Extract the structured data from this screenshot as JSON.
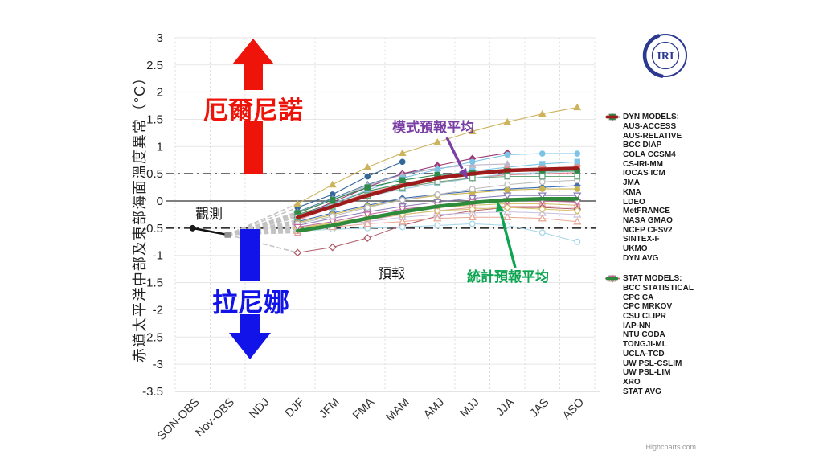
{
  "logo": {
    "text": "IRI"
  },
  "footer": {
    "credit": "Highcharts.com"
  },
  "legend": {
    "dyn_header": "DYN MODELS:",
    "stat_header": "STAT MODELS:"
  },
  "annotations": {
    "y_axis_label_note": "vertical axis title",
    "elnino": {
      "text": "厄爾尼諾",
      "color": "#ee1409"
    },
    "lanina": {
      "text": "拉尼娜",
      "color": "#1113e8"
    },
    "observed": {
      "text": "觀測",
      "color": "#111111"
    },
    "forecast": {
      "text": "預報",
      "color": "#111111"
    },
    "model_avg": {
      "text": "模式預報平均",
      "color": "#7a3fa5"
    },
    "stat_avg": {
      "text": "統計預報平均",
      "color": "#0da551"
    }
  },
  "chart_data": {
    "type": "line",
    "title": "",
    "ylabel": "赤道太平洋中部及東部海面溫度異常（°C）",
    "xlabel": "",
    "ylim": [
      -3.5,
      3
    ],
    "ytick_step": 0.5,
    "grid": true,
    "legend_position": "right",
    "categories": [
      "SON-OBS",
      "Nov-OBS",
      "NDJ",
      "DJF",
      "JFM",
      "FMA",
      "MAM",
      "AMJ",
      "MJJ",
      "JJA",
      "JAS",
      "ASO"
    ],
    "reference_lines": [
      {
        "value": 0.5,
        "style": "dashdot"
      },
      {
        "value": 0,
        "style": "solid"
      },
      {
        "value": -0.5,
        "style": "dashdot"
      }
    ],
    "observed": {
      "name": "觀測",
      "line_color": "#111111",
      "points": [
        {
          "category": "SON-OBS",
          "value": -0.5,
          "marker": "circle",
          "marker_color": "#1a1a1a"
        },
        {
          "category": "Nov-OBS",
          "value": -0.62,
          "marker": "square",
          "marker_color": "#909090"
        }
      ]
    },
    "connector_color": "#c3c3c3",
    "series": [
      {
        "name": "AUS-ACCESS",
        "group": "dyn",
        "color": "#34679a",
        "marker": "circle",
        "filled": true,
        "line_width": 1.1,
        "values": [
          null,
          null,
          null,
          -0.12,
          0.12,
          0.45,
          0.72,
          null,
          null,
          null,
          null,
          null
        ]
      },
      {
        "name": "AUS-RELATIVE",
        "group": "dyn",
        "color": "#5584ad",
        "marker": "triangle-up",
        "filled": true,
        "line_width": 1.1,
        "values": [
          null,
          null,
          null,
          -0.2,
          0.05,
          0.3,
          0.5,
          0.6,
          null,
          null,
          null,
          null
        ]
      },
      {
        "name": "BCC DIAP",
        "group": "dyn",
        "color": "#7fc6e8",
        "marker": "square",
        "filled": true,
        "line_width": 1.1,
        "values": [
          null,
          null,
          null,
          -0.3,
          -0.1,
          0.12,
          0.3,
          0.45,
          0.55,
          0.62,
          0.68,
          0.72
        ]
      },
      {
        "name": "COLA CCSM4",
        "group": "dyn",
        "color": "#ccb35c",
        "marker": "triangle-up",
        "filled": true,
        "line_width": 1.1,
        "values": [
          null,
          null,
          null,
          -0.05,
          0.3,
          0.62,
          0.88,
          1.08,
          1.28,
          1.45,
          1.6,
          1.72
        ]
      },
      {
        "name": "CS-IRI-MM",
        "group": "dyn",
        "color": "#e2848e",
        "marker": "triangle-down",
        "filled": true,
        "line_width": 1.1,
        "values": [
          null,
          null,
          null,
          -0.35,
          -0.12,
          0.08,
          0.25,
          0.35,
          0.42,
          0.48,
          0.5,
          0.52
        ]
      },
      {
        "name": "IOCAS ICM",
        "group": "dyn",
        "color": "#3f6db5",
        "marker": "diamond",
        "filled": true,
        "line_width": 1.1,
        "values": [
          null,
          null,
          null,
          -0.38,
          -0.22,
          -0.08,
          0.05,
          0.12,
          0.18,
          0.22,
          0.25,
          0.28
        ]
      },
      {
        "name": "JMA",
        "group": "dyn",
        "color": "#9fcbe0",
        "marker": "triangle-up",
        "filled": true,
        "line_width": 1.1,
        "values": [
          null,
          null,
          null,
          -0.3,
          -0.12,
          0.08,
          0.22,
          0.32,
          0.42,
          0.5,
          0.52,
          0.55
        ]
      },
      {
        "name": "KMA",
        "group": "dyn",
        "color": "#41905c",
        "marker": "triangle-down",
        "filled": true,
        "line_width": 1.1,
        "values": [
          null,
          null,
          null,
          -0.25,
          -0.05,
          0.18,
          0.32,
          0.42,
          0.5,
          0.55,
          0.58,
          0.6
        ]
      },
      {
        "name": "LDEO",
        "group": "dyn",
        "color": "#c8b450",
        "marker": "circle",
        "filled": true,
        "line_width": 1.1,
        "values": [
          null,
          null,
          null,
          -0.4,
          -0.25,
          -0.1,
          0.02,
          0.1,
          0.15,
          0.2,
          0.22,
          0.22
        ]
      },
      {
        "name": "MetFRANCE",
        "group": "dyn",
        "color": "#e98b8b",
        "marker": "square",
        "filled": true,
        "line_width": 1.1,
        "values": [
          null,
          null,
          null,
          -0.28,
          -0.08,
          0.15,
          0.3,
          0.42,
          0.5,
          0.58,
          0.6,
          0.62
        ]
      },
      {
        "name": "NASA GMAO",
        "group": "dyn",
        "color": "#9c3a74",
        "marker": "diamond",
        "filled": true,
        "line_width": 1.1,
        "values": [
          null,
          null,
          null,
          -0.3,
          -0.02,
          0.25,
          0.5,
          0.65,
          0.78,
          0.88,
          null,
          null
        ]
      },
      {
        "name": "NCEP CFSv2",
        "group": "dyn",
        "color": "#bcb6c6",
        "marker": "triangle-up",
        "filled": true,
        "line_width": 1.1,
        "values": [
          null,
          null,
          null,
          -0.22,
          0.02,
          0.28,
          0.48,
          0.6,
          0.66,
          0.68,
          null,
          null
        ]
      },
      {
        "name": "SINTEX-F",
        "group": "dyn",
        "color": "#7cc3e6",
        "marker": "circle",
        "filled": true,
        "line_width": 1.1,
        "values": [
          null,
          null,
          null,
          -0.28,
          -0.05,
          0.2,
          0.42,
          0.58,
          0.72,
          0.85,
          0.87,
          0.87
        ]
      },
      {
        "name": "UKMO",
        "group": "dyn",
        "color": "#2f8a4a",
        "marker": "square",
        "filled": true,
        "line_width": 1.1,
        "values": [
          null,
          null,
          null,
          -0.22,
          0.02,
          0.25,
          0.38,
          0.48,
          0.52,
          0.55,
          0.55,
          0.55
        ]
      },
      {
        "name": "DYN AVG",
        "group": "dyn",
        "color": "#9e1b1b",
        "marker": "line",
        "filled": true,
        "line_width": 4.6,
        "values": [
          null,
          null,
          null,
          -0.3,
          -0.1,
          0.1,
          0.28,
          0.42,
          0.5,
          0.56,
          0.58,
          0.6
        ]
      },
      {
        "name": "BCC STATISTICAL",
        "group": "stat",
        "color": "#cdbf62",
        "marker": "circle",
        "filled": false,
        "line_width": 1.0,
        "values": [
          null,
          null,
          null,
          -0.5,
          -0.4,
          -0.3,
          -0.2,
          -0.12,
          -0.08,
          -0.05,
          -0.05,
          -0.08
        ]
      },
      {
        "name": "CPC CA",
        "group": "stat",
        "color": "#e598a6",
        "marker": "square",
        "filled": false,
        "line_width": 1.0,
        "values": [
          null,
          null,
          null,
          -0.58,
          -0.48,
          -0.35,
          -0.25,
          -0.18,
          -0.12,
          -0.1,
          -0.1,
          -0.12
        ]
      },
      {
        "name": "CPC MRKOV",
        "group": "stat",
        "color": "#b05a68",
        "marker": "diamond",
        "filled": false,
        "line_width": 1.0,
        "values": [
          null,
          null,
          null,
          -0.95,
          -0.85,
          -0.68,
          -0.45,
          -0.28,
          -0.18,
          -0.12,
          -0.12,
          -0.15
        ]
      },
      {
        "name": "CSU CLIPR",
        "group": "stat",
        "color": "#c9bfdd",
        "marker": "triangle-up",
        "filled": false,
        "line_width": 1.0,
        "values": [
          null,
          null,
          null,
          -0.52,
          -0.45,
          -0.38,
          -0.3,
          -0.25,
          -0.22,
          -0.2,
          -0.22,
          -0.25
        ]
      },
      {
        "name": "IAP-NN",
        "group": "stat",
        "color": "#8a7ab8",
        "marker": "triangle-down",
        "filled": false,
        "line_width": 1.0,
        "values": [
          null,
          null,
          null,
          -0.45,
          -0.32,
          -0.2,
          -0.1,
          -0.02,
          0.05,
          0.1,
          0.1,
          0.1
        ]
      },
      {
        "name": "NTU CODA",
        "group": "stat",
        "color": "#a5d6e8",
        "marker": "circle",
        "filled": false,
        "line_width": 1.0,
        "values": [
          null,
          null,
          null,
          -0.55,
          -0.52,
          -0.5,
          -0.48,
          -0.45,
          -0.42,
          -0.45,
          -0.58,
          -0.75
        ]
      },
      {
        "name": "TONGJI-ML",
        "group": "stat",
        "color": "#bbbbbb",
        "marker": "circle",
        "filled": false,
        "line_width": 1.0,
        "values": [
          null,
          null,
          null,
          -0.42,
          -0.28,
          -0.12,
          0.02,
          0.12,
          0.22,
          0.3,
          0.35,
          0.38
        ]
      },
      {
        "name": "UCLA-TCD",
        "group": "stat",
        "color": "#69a87e",
        "marker": "square",
        "filled": false,
        "line_width": 1.0,
        "values": [
          null,
          null,
          null,
          -0.3,
          -0.1,
          0.1,
          0.25,
          0.35,
          0.42,
          0.45,
          0.45,
          0.45
        ]
      },
      {
        "name": "UW PSL-CSLIM",
        "group": "stat",
        "color": "#d3c268",
        "marker": "diamond",
        "filled": false,
        "line_width": 1.0,
        "values": [
          null,
          null,
          null,
          -0.5,
          -0.42,
          -0.32,
          -0.25,
          -0.18,
          -0.15,
          -0.12,
          -0.15,
          -0.18
        ]
      },
      {
        "name": "UW PSL-LIM",
        "group": "stat",
        "color": "#e8a795",
        "marker": "triangle-up",
        "filled": false,
        "line_width": 1.0,
        "values": [
          null,
          null,
          null,
          -0.55,
          -0.48,
          -0.42,
          -0.38,
          -0.32,
          -0.3,
          -0.3,
          -0.32,
          -0.38
        ]
      },
      {
        "name": "XRO",
        "group": "stat",
        "color": "#c0679a",
        "marker": "triangle-down",
        "filled": false,
        "line_width": 1.0,
        "values": [
          null,
          null,
          null,
          -0.48,
          -0.38,
          -0.25,
          -0.15,
          -0.08,
          -0.02,
          0,
          0,
          -0.02
        ]
      },
      {
        "name": "STAT AVG",
        "group": "stat",
        "color": "#2e8b3c",
        "marker": "line",
        "filled": true,
        "line_width": 4.6,
        "values": [
          null,
          null,
          null,
          -0.55,
          -0.45,
          -0.32,
          -0.2,
          -0.1,
          -0.03,
          0.02,
          0.04,
          0.04
        ]
      }
    ]
  }
}
